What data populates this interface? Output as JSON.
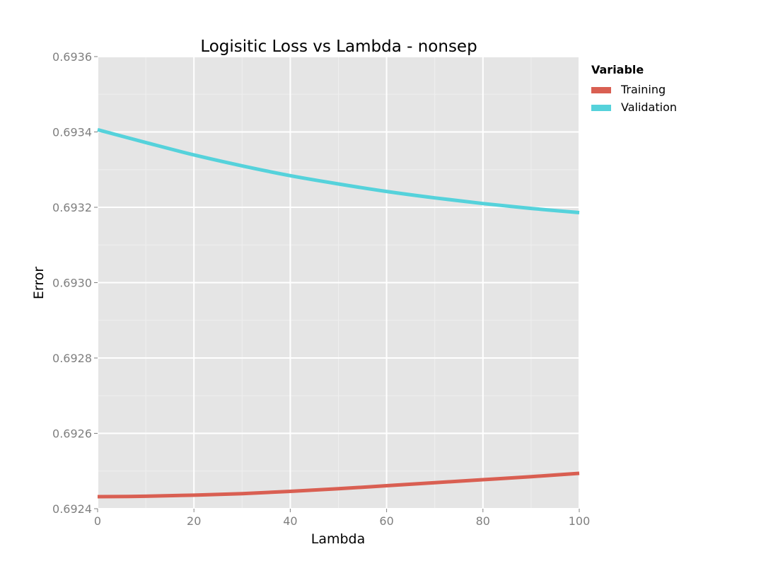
{
  "colors": {
    "panel_bg": "#e5e5e5",
    "grid_major": "#ffffff",
    "grid_minor": "#efefef",
    "training": "#d95f52",
    "validation": "#55d2db",
    "tick": "#7f7f7f"
  },
  "chart_data": {
    "type": "line",
    "title": "Logisitic Loss vs Lambda - nonsep",
    "xlabel": "Lambda",
    "ylabel": "Error",
    "xlim": [
      0,
      100
    ],
    "ylim": [
      0.6924,
      0.6936
    ],
    "x_ticks": [
      0,
      20,
      40,
      60,
      80,
      100
    ],
    "x_tick_labels": [
      "0",
      "20",
      "40",
      "60",
      "80",
      "100"
    ],
    "y_ticks": [
      0.6924,
      0.6926,
      0.6928,
      0.693,
      0.6932,
      0.6934,
      0.6936
    ],
    "y_tick_labels": [
      "0.6924",
      "0.6926",
      "0.6928",
      "0.6930",
      "0.6932",
      "0.6934",
      "0.6936"
    ],
    "grid": true,
    "legend": {
      "title": "Variable",
      "placement": "right"
    },
    "x": [
      0,
      10,
      20,
      30,
      40,
      50,
      60,
      70,
      80,
      90,
      100
    ],
    "series": [
      {
        "name": "Training",
        "color": "#d95f52",
        "values": [
          0.692432,
          0.692433,
          0.692436,
          0.69244,
          0.692446,
          0.692453,
          0.692461,
          0.692469,
          0.692477,
          0.692485,
          0.692494
        ]
      },
      {
        "name": "Validation",
        "color": "#55d2db",
        "values": [
          0.693406,
          0.693372,
          0.693339,
          0.69331,
          0.693284,
          0.693262,
          0.693242,
          0.693225,
          0.69321,
          0.693197,
          0.693186
        ]
      }
    ]
  }
}
